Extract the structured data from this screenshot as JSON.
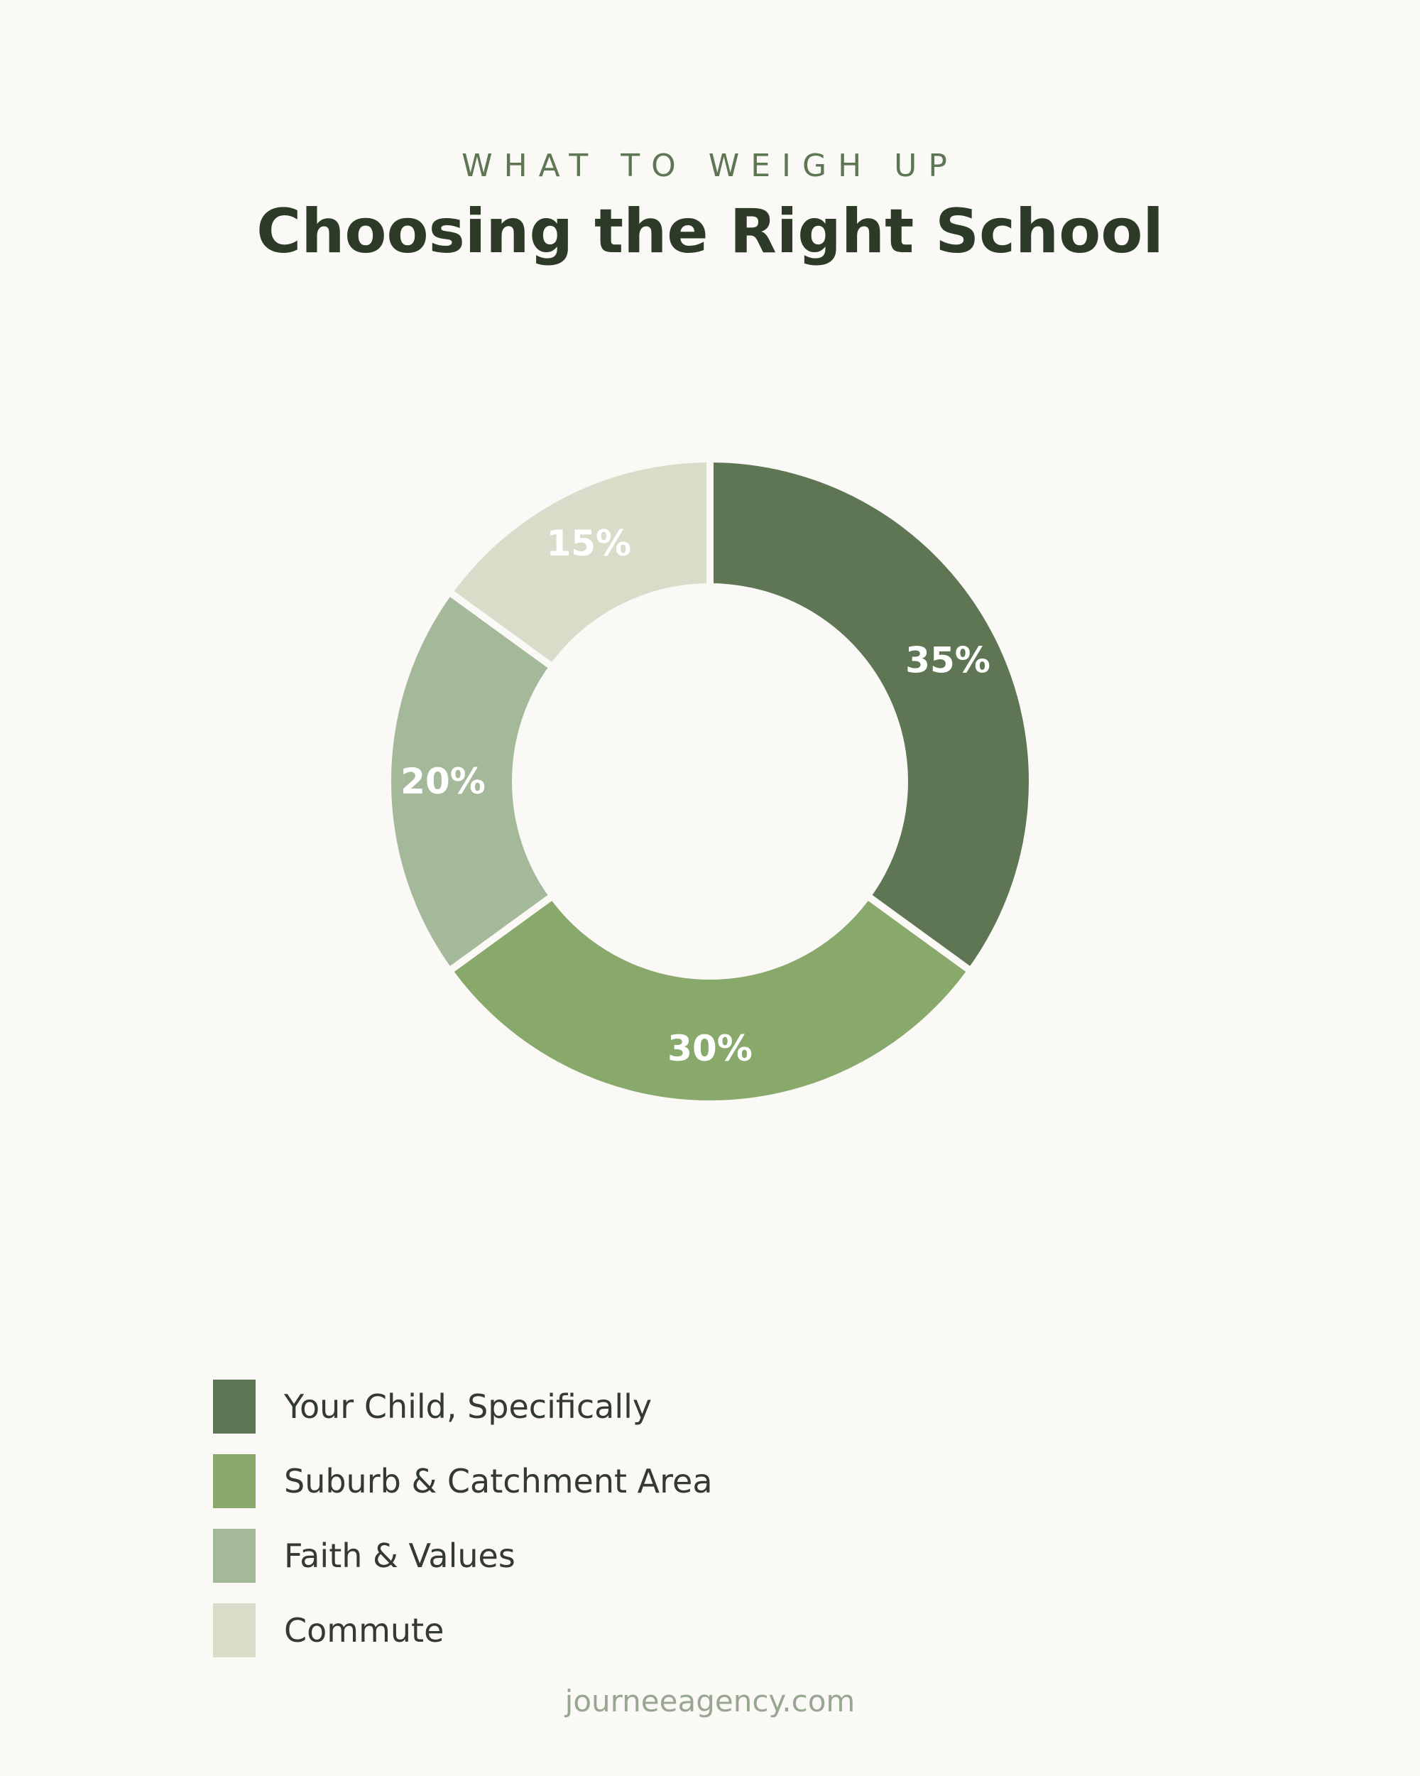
{
  "header": {
    "eyebrow": "WHAT TO WEIGH UP",
    "title": "Choosing the Right School"
  },
  "chart_data": {
    "type": "pie",
    "variant": "donut",
    "start_angle_deg": 0,
    "direction": "clockwise",
    "labels_format": "percent",
    "slices": [
      {
        "label": "Your Child, Specifically",
        "value": 35,
        "display": "35%",
        "color": "#5f7655"
      },
      {
        "label": "Suburb & Catchment Area",
        "value": 30,
        "display": "30%",
        "color": "#88a86c"
      },
      {
        "label": "Faith & Values",
        "value": 20,
        "display": "20%",
        "color": "#a4b99a"
      },
      {
        "label": "Commute",
        "value": 15,
        "display": "15%",
        "color": "#d7ddc8"
      }
    ],
    "legend_position": "bottom-left"
  },
  "footer": {
    "text": "journeeagency.com"
  }
}
